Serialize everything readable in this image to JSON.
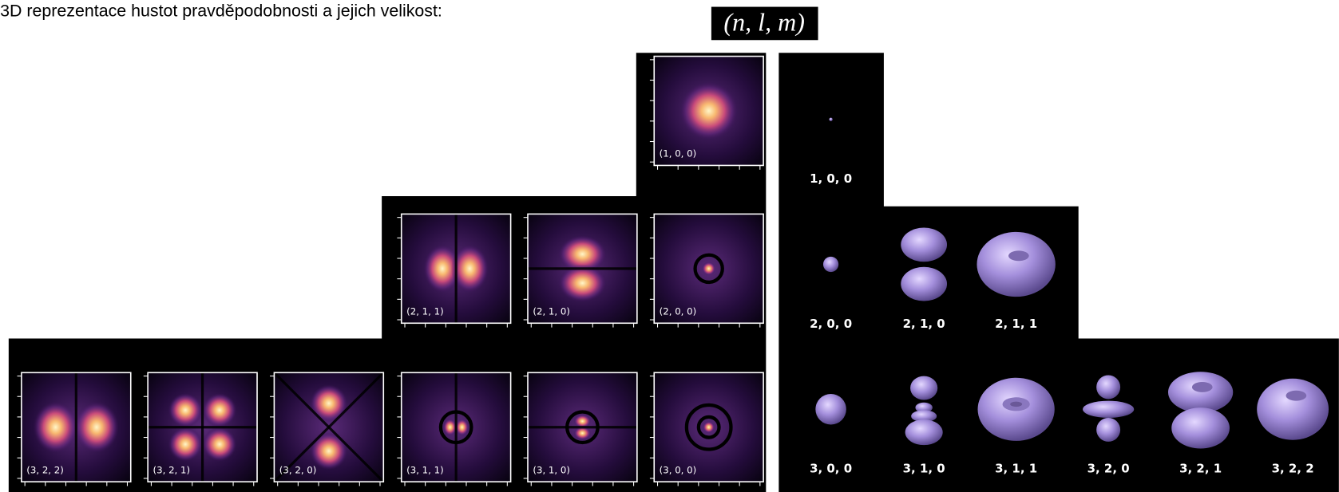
{
  "title": "3D reprezentace hustot pravděpodobnosti a jejich velikost:",
  "formula": "(n, l, m)",
  "density_plots": [
    {
      "label": "(1, 0, 0)"
    },
    {
      "label": "(2, 1, 1)"
    },
    {
      "label": "(2, 1, 0)"
    },
    {
      "label": "(2, 0, 0)"
    },
    {
      "label": "(3, 2, 2)"
    },
    {
      "label": "(3, 2, 1)"
    },
    {
      "label": "(3, 2, 0)"
    },
    {
      "label": "(3, 1, 1)"
    },
    {
      "label": "(3, 1, 0)"
    },
    {
      "label": "(3, 0, 0)"
    }
  ],
  "shapes": [
    {
      "label": "1, 0, 0"
    },
    {
      "label": "2, 0, 0"
    },
    {
      "label": "2, 1, 0"
    },
    {
      "label": "2, 1, 1"
    },
    {
      "label": "3, 0, 0"
    },
    {
      "label": "3, 1, 0"
    },
    {
      "label": "3, 1, 1"
    },
    {
      "label": "3, 2, 0"
    },
    {
      "label": "3, 2, 1"
    },
    {
      "label": "3, 2, 2"
    }
  ]
}
